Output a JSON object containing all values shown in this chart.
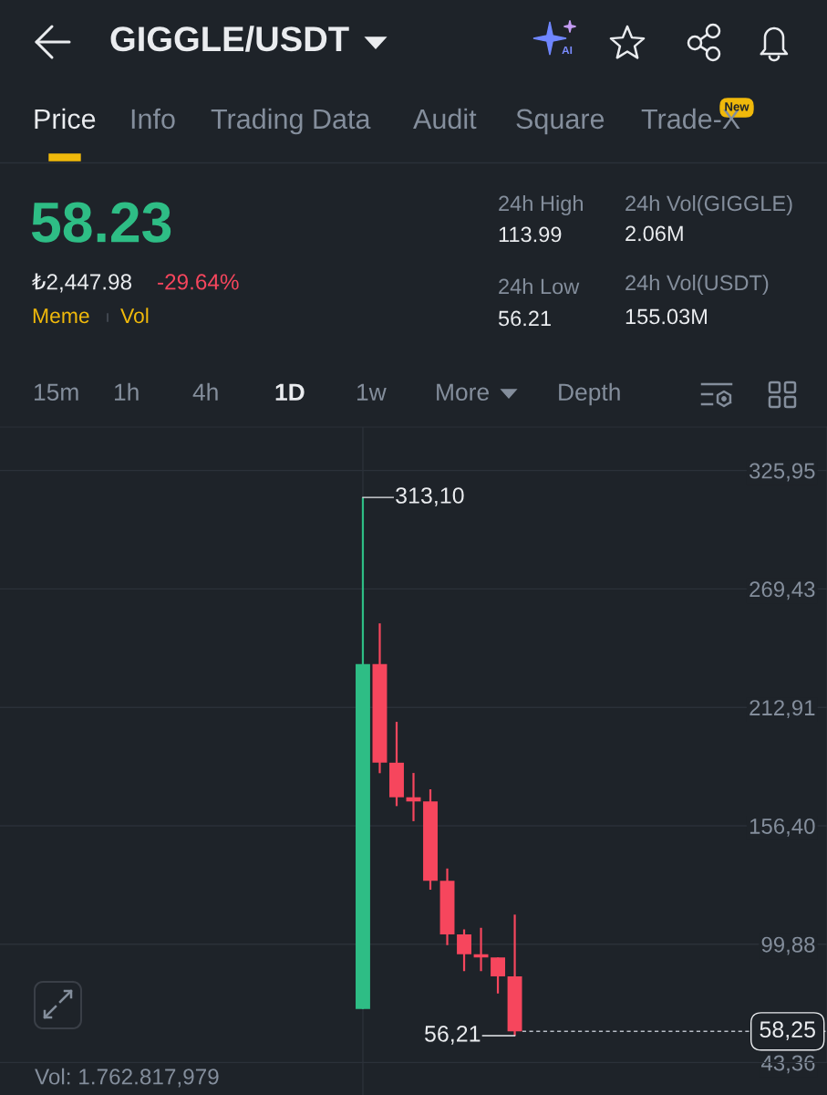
{
  "chart_data": {
    "type": "candlestick",
    "title": "GIGGLE/USDT",
    "categories": [
      null,
      null,
      null,
      null,
      null,
      null,
      null,
      null,
      null,
      null,
      null,
      null,
      null,
      null,
      null,
      null,
      null,
      null,
      null,
      null,
      null,
      null,
      null,
      null,
      null,
      null,
      null,
      null,
      null,
      null,
      null,
      null,
      null,
      null,
      null,
      null,
      null,
      null,
      null,
      null,
      null,
      null,
      null,
      null,
      null,
      null,
      null,
      null,
      null
    ],
    "ohlc": [
      null,
      null,
      null,
      null,
      null,
      null,
      null,
      null,
      null,
      null,
      null,
      null,
      null,
      null,
      null,
      null,
      null,
      null,
      null,
      null,
      null,
      [
        69.0,
        313.1,
        69.0,
        233.6
      ],
      [
        233.6,
        253.0,
        181.5,
        186.5
      ],
      [
        186.5,
        206.0,
        165.8,
        170.0
      ],
      [
        170.0,
        181.6,
        158.6,
        168.0
      ],
      [
        168.0,
        173.8,
        125.9,
        130.1
      ],
      [
        130.1,
        136.0,
        99.4,
        104.6
      ],
      [
        104.6,
        106.9,
        87.0,
        95.1
      ],
      [
        95.1,
        107.7,
        87.0,
        93.6
      ],
      [
        93.6,
        93.6,
        76.3,
        84.5
      ],
      [
        84.5,
        113.99,
        56.21,
        58.25
      ],
      null,
      null,
      null,
      null,
      null,
      null,
      null,
      null,
      null,
      null,
      null,
      null,
      null,
      null,
      null,
      null,
      null,
      null
    ],
    "colors": [
      null,
      null,
      null,
      null,
      null,
      null,
      null,
      null,
      null,
      null,
      null,
      null,
      null,
      null,
      null,
      null,
      null,
      null,
      null,
      null,
      null,
      "#2ebd85",
      "#f6465d",
      "#f6465d",
      "#f6465d",
      "#f6465d",
      "#f6465d",
      "#f6465d",
      "#f6465d",
      "#f6465d",
      "#f6465d",
      null,
      null,
      null,
      null,
      null,
      null,
      null,
      null,
      null,
      null,
      null,
      null,
      null,
      null,
      null,
      null,
      null,
      null
    ],
    "ylim": [
      43.36,
      346.7
    ],
    "yticks": [
      {
        "value": 43.36,
        "label": "43,36"
      },
      {
        "value": 99.88,
        "label": "99,88"
      },
      {
        "value": 156.4,
        "label": "156,40"
      },
      {
        "value": 212.91,
        "label": "212,91"
      },
      {
        "value": 269.43,
        "label": "269,43"
      },
      {
        "value": 325.95,
        "label": "325,95"
      }
    ],
    "grid": "y",
    "tick_labels": "y",
    "ref_lines": [
      {
        "axis": "y",
        "value": 58.25,
        "label": "58,25",
        "line_style": "dashed",
        "color": "#b7bdc6"
      }
    ],
    "annotations": [
      "Price",
      "Info",
      "Trading Data",
      "Audit",
      "Square",
      "Trade-X",
      "New",
      "58.23",
      "₺2,447.98",
      "-29.64%",
      "Meme",
      "Vol",
      "24h High",
      "113.99",
      "24h Vol(GIGGLE)",
      "2.06M",
      "24h Low",
      "56.21",
      "24h Vol(USDT)",
      "155.03M",
      "15m",
      "1h",
      "4h",
      "1D",
      "1w",
      "More",
      "Depth",
      "AI",
      "Vol: 1.762.817,979",
      "313,10",
      "56,21"
    ]
  }
}
